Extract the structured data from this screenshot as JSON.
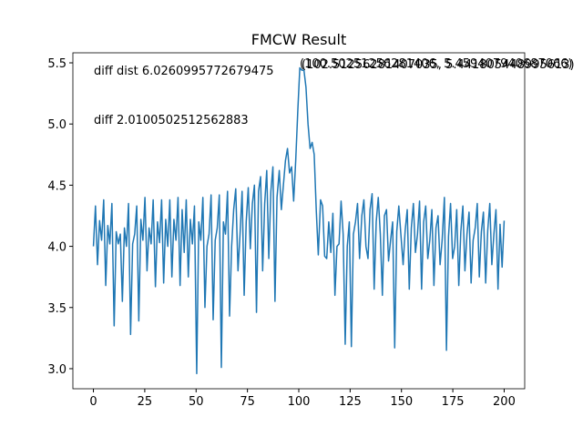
{
  "chart_data": {
    "type": "line",
    "title": "FMCW Result",
    "annotations": [
      "diff dist 6.0260995772679475",
      "diff 2.0100502512562883",
      "(100.50251256281406, 5.459407940687066)",
      "(102.51256281407035, 5.441805448995613)"
    ],
    "x": [
      0,
      1,
      2,
      3,
      4,
      5,
      6,
      7,
      8,
      9,
      10.1,
      11.1,
      12.1,
      13.1,
      14.1,
      15.1,
      16.1,
      17.1,
      18.1,
      19.1,
      20.1,
      21.1,
      22.1,
      23.1,
      24.1,
      25.1,
      26.1,
      27.1,
      28.1,
      29.1,
      30.2,
      31.2,
      32.2,
      33.2,
      34.2,
      35.2,
      36.2,
      37.2,
      38.2,
      39.2,
      40.2,
      41.2,
      42.2,
      43.2,
      44.2,
      45.2,
      46.2,
      47.2,
      48.2,
      49.2,
      50.3,
      51.3,
      52.3,
      53.3,
      54.3,
      55.3,
      56.3,
      57.3,
      58.3,
      59.3,
      60.3,
      61.3,
      62.3,
      63.3,
      64.3,
      65.3,
      66.3,
      67.3,
      68.3,
      69.3,
      70.4,
      71.4,
      72.4,
      73.4,
      74.4,
      75.4,
      76.4,
      77.4,
      78.4,
      79.4,
      80.4,
      81.4,
      82.4,
      83.4,
      84.4,
      85.4,
      86.4,
      87.4,
      88.4,
      89.4,
      90.5,
      91.5,
      92.5,
      93.5,
      94.5,
      95.5,
      96.5,
      97.5,
      98.5,
      99.5,
      100.5,
      101.5,
      102.5,
      103.5,
      104.5,
      105.5,
      106.5,
      107.5,
      108.5,
      109.5,
      110.6,
      111.6,
      112.6,
      113.6,
      114.6,
      115.6,
      116.6,
      117.6,
      118.6,
      119.6,
      120.6,
      121.6,
      122.6,
      123.6,
      124.6,
      125.6,
      126.6,
      127.6,
      128.6,
      129.6,
      130.7,
      131.7,
      132.7,
      133.7,
      134.7,
      135.7,
      136.7,
      137.7,
      138.7,
      139.7,
      140.7,
      141.7,
      142.7,
      143.7,
      144.7,
      145.7,
      146.7,
      147.7,
      148.7,
      149.7,
      150.8,
      151.8,
      152.8,
      153.8,
      154.8,
      155.8,
      156.8,
      157.8,
      158.8,
      159.8,
      160.8,
      161.8,
      162.8,
      163.8,
      164.8,
      165.8,
      166.8,
      167.8,
      168.8,
      169.8,
      170.9,
      171.9,
      172.9,
      173.9,
      174.9,
      175.9,
      176.9,
      177.9,
      178.9,
      179.9,
      180.9,
      181.9,
      182.9,
      183.9,
      184.9,
      185.9,
      186.9,
      187.9,
      188.9,
      189.9,
      191,
      192,
      193,
      194,
      195,
      196,
      197,
      198,
      199,
      200
    ],
    "series": [
      {
        "color": "#1f77b4",
        "values": [
          4.0,
          4.33,
          3.85,
          4.21,
          4.05,
          4.38,
          3.68,
          4.17,
          4.02,
          4.35,
          3.35,
          4.12,
          4.02,
          4.1,
          3.55,
          4.15,
          4.0,
          4.35,
          3.28,
          4.02,
          4.1,
          4.33,
          3.39,
          4.22,
          4.05,
          4.4,
          3.8,
          4.15,
          4.02,
          4.38,
          3.67,
          4.2,
          4.03,
          4.38,
          3.7,
          4.22,
          4.0,
          4.38,
          3.75,
          4.22,
          4.05,
          4.4,
          3.68,
          4.3,
          3.95,
          4.38,
          3.75,
          4.22,
          4.02,
          4.33,
          2.96,
          4.2,
          4.05,
          4.4,
          3.5,
          4.0,
          4.1,
          4.42,
          3.4,
          4.05,
          4.15,
          4.42,
          3.01,
          4.2,
          4.1,
          4.45,
          3.43,
          4.0,
          4.3,
          4.47,
          3.8,
          4.1,
          4.45,
          3.6,
          4.2,
          4.48,
          3.98,
          4.35,
          4.5,
          3.46,
          4.45,
          4.57,
          3.8,
          4.35,
          4.62,
          3.9,
          4.45,
          4.65,
          3.55,
          4.4,
          4.62,
          4.3,
          4.5,
          4.7,
          4.8,
          4.6,
          4.65,
          4.37,
          4.7,
          5.1,
          5.459,
          5.44,
          5.441,
          5.3,
          5.0,
          4.8,
          4.85,
          4.75,
          4.3,
          3.93,
          4.38,
          4.33,
          3.92,
          3.9,
          4.2,
          3.95,
          4.27,
          3.6,
          4.0,
          4.02,
          4.37,
          4.1,
          3.2,
          4.0,
          4.2,
          3.18,
          4.1,
          4.2,
          4.35,
          3.9,
          4.25,
          4.38,
          4.0,
          3.9,
          4.3,
          4.43,
          3.65,
          4.2,
          4.4,
          4.1,
          3.6,
          4.25,
          4.3,
          3.88,
          4.05,
          4.2,
          3.17,
          4.12,
          4.33,
          4.1,
          3.85,
          4.13,
          4.3,
          3.65,
          4.15,
          4.35,
          3.95,
          4.1,
          4.37,
          3.65,
          4.2,
          4.33,
          3.9,
          4.05,
          4.3,
          3.68,
          4.15,
          4.25,
          3.85,
          4.05,
          4.4,
          3.15,
          4.08,
          4.35,
          3.9,
          4.0,
          4.3,
          3.68,
          4.12,
          4.33,
          3.8,
          4.1,
          4.28,
          3.7,
          4.05,
          4.15,
          4.35,
          3.75,
          4.12,
          4.28,
          3.7,
          4.13,
          4.35,
          3.85,
          4.1,
          4.3,
          3.65,
          4.18,
          3.83,
          4.21
        ]
      }
    ],
    "xlim": [
      -10,
      210
    ],
    "xticks": [
      0,
      25,
      50,
      75,
      100,
      125,
      150,
      175,
      200
    ],
    "ylim": [
      2.836,
      5.582
    ],
    "yticks": [
      {
        "value": 3,
        "label": "3.0"
      },
      3.5,
      {
        "value": 4,
        "label": "4.0"
      },
      4.5,
      {
        "value": 5,
        "label": "5.0"
      },
      5.5
    ]
  }
}
